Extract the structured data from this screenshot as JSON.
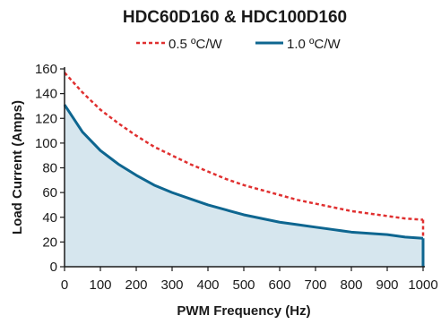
{
  "chart_data": {
    "type": "area",
    "title": "HDC60D160 & HDC100D160",
    "xlabel": "PWM Frequency (Hz)",
    "ylabel": "Load Current (Amps)",
    "xlim": [
      0,
      1000
    ],
    "ylim": [
      0,
      160
    ],
    "x_ticks": [
      0,
      100,
      200,
      300,
      400,
      500,
      600,
      700,
      800,
      900,
      1000
    ],
    "y_ticks": [
      0,
      20,
      40,
      60,
      80,
      100,
      120,
      140,
      160
    ],
    "grid": false,
    "legend_position": "top-center",
    "series": [
      {
        "name": "0.5 ºC/W",
        "style": "dashed",
        "color": "#e03030",
        "x": [
          0,
          50,
          100,
          150,
          200,
          250,
          300,
          350,
          400,
          450,
          500,
          550,
          600,
          650,
          700,
          750,
          800,
          850,
          900,
          950,
          1000
        ],
        "y": [
          157,
          141,
          127,
          116,
          106,
          97,
          90,
          83,
          77,
          71,
          66,
          62,
          58,
          54,
          51,
          48,
          45,
          43,
          41,
          39,
          38
        ]
      },
      {
        "name": "1.0 ºC/W",
        "style": "solid",
        "color": "#0e6690",
        "fill": "#d6e6ee",
        "x": [
          0,
          50,
          100,
          150,
          200,
          250,
          300,
          350,
          400,
          450,
          500,
          550,
          600,
          650,
          700,
          750,
          800,
          850,
          900,
          950,
          1000
        ],
        "y": [
          131,
          109,
          94,
          83,
          74,
          66,
          60,
          55,
          50,
          46,
          42,
          39,
          36,
          34,
          32,
          30,
          28,
          27,
          26,
          24,
          23
        ]
      }
    ]
  }
}
